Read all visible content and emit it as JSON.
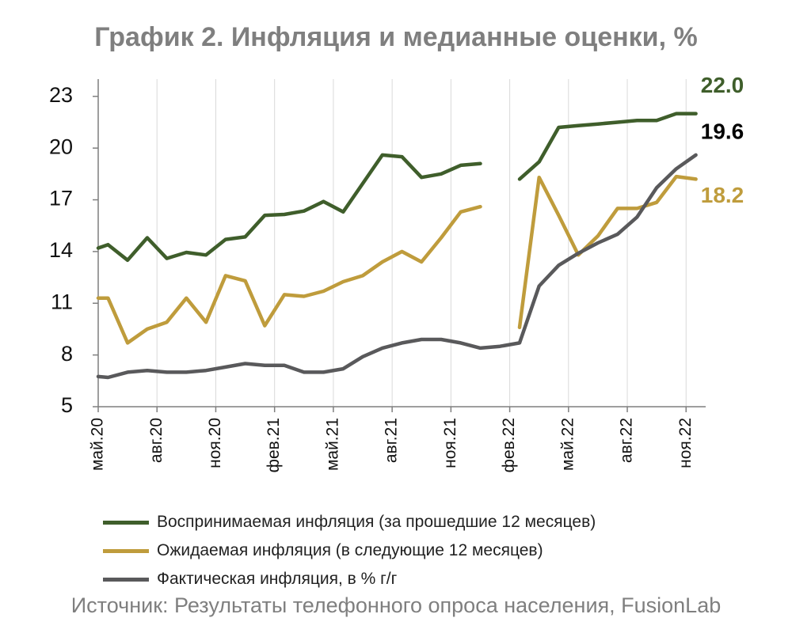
{
  "title": "График 2. Инфляция и медианные оценки, %",
  "source": "Источник: Результаты телефонного опроса населения, FusionLab",
  "colors": {
    "perceived": "#3f5e2b",
    "expected": "#bf9c3c",
    "actual": "#59595b",
    "grid": "#d9d9d9",
    "axis": "#7f7f7f",
    "title": "#7f7f7f"
  },
  "chart_data": {
    "type": "line",
    "title": "График 2. Инфляция и медианные оценки, %",
    "x": [
      "май.20",
      "июн.20",
      "июл.20",
      "авг.20",
      "сен.20",
      "окт.20",
      "ноя.20",
      "дек.20",
      "янв.21",
      "фев.21",
      "мар.21",
      "апр.21",
      "май.21",
      "июн.21",
      "июл.21",
      "авг.21",
      "сен.21",
      "окт.21",
      "ноя.21",
      "дек.21",
      "янв.22",
      "фев.22",
      "мар.22",
      "апр.22",
      "май.22",
      "июн.22",
      "июл.22",
      "авг.22",
      "сен.22",
      "окт.22",
      "ноя.22"
    ],
    "tick_labels": [
      "май.20",
      "авг.20",
      "ноя.20",
      "фев.21",
      "май.21",
      "авг.21",
      "ноя.21",
      "фев.22",
      "май.22",
      "авг.22",
      "ноя.22"
    ],
    "y_ticks": [
      "5",
      "8",
      "11",
      "14",
      "17",
      "20",
      "23"
    ],
    "ylim": [
      5,
      24
    ],
    "grid": "vertical",
    "legend_position": "bottom",
    "series": [
      {
        "name": "Воспринимаемая инфляция (за прошедшие 12 месяцев)",
        "color_key": "perceived",
        "end_label": "22.0",
        "points": [
          {
            "t": 0,
            "v": 14.2
          },
          {
            "t": 0.5,
            "v": 14.4
          },
          {
            "t": 1.5,
            "v": 13.5
          },
          {
            "t": 2.5,
            "v": 14.8
          },
          {
            "t": 3.5,
            "v": 13.6
          },
          {
            "t": 4.5,
            "v": 13.95
          },
          {
            "t": 5.5,
            "v": 13.8
          },
          {
            "t": 6.5,
            "v": 14.7
          },
          {
            "t": 7.5,
            "v": 14.85
          },
          {
            "t": 8.5,
            "v": 16.1
          },
          {
            "t": 9.5,
            "v": 16.15
          },
          {
            "t": 10.5,
            "v": 16.35
          },
          {
            "t": 11.5,
            "v": 16.9
          },
          {
            "t": 12.5,
            "v": 16.3
          },
          {
            "t": 14.5,
            "v": 19.6
          },
          {
            "t": 15.5,
            "v": 19.5
          },
          {
            "t": 16.5,
            "v": 18.3
          },
          {
            "t": 17.5,
            "v": 18.5
          },
          {
            "t": 18.5,
            "v": 19.0
          },
          {
            "t": 19.5,
            "v": 19.1
          },
          {
            "t": 21.5,
            "v": 18.2
          },
          {
            "t": 22.5,
            "v": 19.2
          },
          {
            "t": 23.5,
            "v": 21.2
          },
          {
            "t": 24.5,
            "v": 21.3
          },
          {
            "t": 25.5,
            "v": 21.4
          },
          {
            "t": 26.5,
            "v": 21.5
          },
          {
            "t": 27.5,
            "v": 21.6
          },
          {
            "t": 28.5,
            "v": 21.6
          },
          {
            "t": 29.5,
            "v": 22.0
          },
          {
            "t": 30.5,
            "v": 22.0
          }
        ],
        "gap_after_t": 19.5
      },
      {
        "name": "Ожидаемая инфляция (в следующие 12 месяцев)",
        "color_key": "expected",
        "end_label": "18.2",
        "points": [
          {
            "t": 0,
            "v": 11.3
          },
          {
            "t": 0.5,
            "v": 11.3
          },
          {
            "t": 1.5,
            "v": 8.7
          },
          {
            "t": 2.5,
            "v": 9.5
          },
          {
            "t": 3.5,
            "v": 9.9
          },
          {
            "t": 4.5,
            "v": 11.3
          },
          {
            "t": 5.5,
            "v": 9.9
          },
          {
            "t": 6.5,
            "v": 12.6
          },
          {
            "t": 7.5,
            "v": 12.3
          },
          {
            "t": 8.5,
            "v": 9.7
          },
          {
            "t": 9.5,
            "v": 11.5
          },
          {
            "t": 10.5,
            "v": 11.4
          },
          {
            "t": 11.5,
            "v": 11.7
          },
          {
            "t": 12.5,
            "v": 12.25
          },
          {
            "t": 13.5,
            "v": 12.6
          },
          {
            "t": 14.5,
            "v": 13.4
          },
          {
            "t": 15.5,
            "v": 14.0
          },
          {
            "t": 16.5,
            "v": 13.4
          },
          {
            "t": 17.5,
            "v": 14.8
          },
          {
            "t": 18.5,
            "v": 16.3
          },
          {
            "t": 19.5,
            "v": 16.6
          },
          {
            "t": 21.5,
            "v": 9.6
          },
          {
            "t": 22.5,
            "v": 18.3
          },
          {
            "t": 23.5,
            "v": 16.1
          },
          {
            "t": 24.5,
            "v": 13.8
          },
          {
            "t": 25.5,
            "v": 14.9
          },
          {
            "t": 26.5,
            "v": 16.5
          },
          {
            "t": 27.5,
            "v": 16.5
          },
          {
            "t": 28.5,
            "v": 16.85
          },
          {
            "t": 29.5,
            "v": 18.35
          },
          {
            "t": 30.5,
            "v": 18.2
          }
        ],
        "gap_after_t": 19.5
      },
      {
        "name": "Фактическая инфляция, в % г/г",
        "color_key": "actual",
        "end_label": "19.6",
        "points": [
          {
            "t": 0,
            "v": 6.75
          },
          {
            "t": 0.5,
            "v": 6.7
          },
          {
            "t": 1.5,
            "v": 7.0
          },
          {
            "t": 2.5,
            "v": 7.1
          },
          {
            "t": 3.5,
            "v": 7.0
          },
          {
            "t": 4.5,
            "v": 7.0
          },
          {
            "t": 5.5,
            "v": 7.1
          },
          {
            "t": 6.5,
            "v": 7.3
          },
          {
            "t": 7.5,
            "v": 7.5
          },
          {
            "t": 8.5,
            "v": 7.4
          },
          {
            "t": 9.5,
            "v": 7.4
          },
          {
            "t": 10.5,
            "v": 7.0
          },
          {
            "t": 11.5,
            "v": 7.0
          },
          {
            "t": 12.5,
            "v": 7.2
          },
          {
            "t": 13.5,
            "v": 7.9
          },
          {
            "t": 14.5,
            "v": 8.4
          },
          {
            "t": 15.5,
            "v": 8.7
          },
          {
            "t": 16.5,
            "v": 8.9
          },
          {
            "t": 17.5,
            "v": 8.9
          },
          {
            "t": 18.5,
            "v": 8.7
          },
          {
            "t": 19.5,
            "v": 8.4
          },
          {
            "t": 20.5,
            "v": 8.5
          },
          {
            "t": 21.5,
            "v": 8.7
          },
          {
            "t": 22.5,
            "v": 12.0
          },
          {
            "t": 23.5,
            "v": 13.2
          },
          {
            "t": 24.5,
            "v": 13.9
          },
          {
            "t": 25.5,
            "v": 14.5
          },
          {
            "t": 26.5,
            "v": 15.0
          },
          {
            "t": 27.5,
            "v": 16.0
          },
          {
            "t": 28.5,
            "v": 17.7
          },
          {
            "t": 29.5,
            "v": 18.8
          },
          {
            "t": 30.5,
            "v": 19.6
          }
        ],
        "gap_after_t": null
      }
    ]
  }
}
